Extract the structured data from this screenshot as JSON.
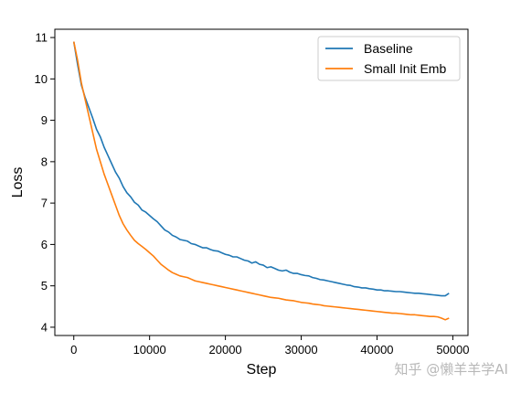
{
  "chart_data": {
    "type": "line",
    "xlabel": "Step",
    "ylabel": "Loss",
    "xlim": [
      -2500,
      52000
    ],
    "ylim": [
      3.8,
      11.2
    ],
    "xticks": [
      0,
      10000,
      20000,
      30000,
      40000,
      50000
    ],
    "yticks": [
      4,
      5,
      6,
      7,
      8,
      9,
      10,
      11
    ],
    "legend_position": "top-right",
    "x": [
      0,
      500,
      1000,
      1500,
      2000,
      2500,
      3000,
      3500,
      4000,
      4500,
      5000,
      5500,
      6000,
      6500,
      7000,
      7500,
      8000,
      8500,
      9000,
      9500,
      10000,
      10500,
      11000,
      11500,
      12000,
      12500,
      13000,
      13500,
      14000,
      14500,
      15000,
      15500,
      16000,
      16500,
      17000,
      17500,
      18000,
      18500,
      19000,
      19500,
      20000,
      20500,
      21000,
      21500,
      22000,
      22500,
      23000,
      23500,
      24000,
      24500,
      25000,
      25500,
      26000,
      26500,
      27000,
      27500,
      28000,
      28500,
      29000,
      29500,
      30000,
      30500,
      31000,
      31500,
      32000,
      32500,
      33000,
      33500,
      34000,
      34500,
      35000,
      35500,
      36000,
      36500,
      37000,
      37500,
      38000,
      38500,
      39000,
      39500,
      40000,
      40500,
      41000,
      41500,
      42000,
      42500,
      43000,
      43500,
      44000,
      44500,
      45000,
      45500,
      46000,
      46500,
      47000,
      47500,
      48000,
      48500,
      49000,
      49500
    ],
    "series": [
      {
        "name": "Baseline",
        "color": "#1f77b4",
        "values": [
          10.9,
          10.35,
          9.85,
          9.55,
          9.3,
          9.05,
          8.78,
          8.6,
          8.35,
          8.15,
          7.95,
          7.75,
          7.6,
          7.4,
          7.25,
          7.15,
          7.02,
          6.95,
          6.83,
          6.78,
          6.7,
          6.62,
          6.55,
          6.45,
          6.35,
          6.3,
          6.22,
          6.18,
          6.12,
          6.1,
          6.08,
          6.02,
          6.0,
          5.96,
          5.92,
          5.92,
          5.88,
          5.85,
          5.84,
          5.8,
          5.76,
          5.74,
          5.7,
          5.7,
          5.66,
          5.62,
          5.6,
          5.55,
          5.58,
          5.52,
          5.5,
          5.44,
          5.46,
          5.42,
          5.38,
          5.36,
          5.38,
          5.33,
          5.3,
          5.3,
          5.27,
          5.25,
          5.24,
          5.2,
          5.18,
          5.15,
          5.14,
          5.12,
          5.1,
          5.08,
          5.06,
          5.04,
          5.02,
          5.01,
          4.98,
          4.97,
          4.95,
          4.95,
          4.93,
          4.92,
          4.9,
          4.9,
          4.88,
          4.88,
          4.87,
          4.86,
          4.86,
          4.85,
          4.84,
          4.83,
          4.82,
          4.82,
          4.81,
          4.8,
          4.79,
          4.78,
          4.77,
          4.76,
          4.76,
          4.82
        ]
      },
      {
        "name": "Small Init Emb",
        "color": "#ff7f0e",
        "values": [
          10.9,
          10.45,
          9.9,
          9.5,
          9.1,
          8.7,
          8.3,
          8.0,
          7.7,
          7.45,
          7.2,
          6.95,
          6.7,
          6.5,
          6.35,
          6.22,
          6.1,
          6.02,
          5.95,
          5.88,
          5.8,
          5.72,
          5.62,
          5.52,
          5.45,
          5.38,
          5.32,
          5.28,
          5.24,
          5.22,
          5.2,
          5.16,
          5.12,
          5.1,
          5.08,
          5.06,
          5.04,
          5.02,
          5.0,
          4.98,
          4.96,
          4.94,
          4.92,
          4.9,
          4.88,
          4.86,
          4.84,
          4.82,
          4.8,
          4.78,
          4.76,
          4.74,
          4.72,
          4.71,
          4.7,
          4.68,
          4.66,
          4.65,
          4.64,
          4.62,
          4.6,
          4.59,
          4.58,
          4.56,
          4.55,
          4.54,
          4.52,
          4.51,
          4.5,
          4.49,
          4.48,
          4.47,
          4.46,
          4.45,
          4.44,
          4.43,
          4.42,
          4.41,
          4.4,
          4.39,
          4.38,
          4.37,
          4.36,
          4.35,
          4.34,
          4.34,
          4.33,
          4.32,
          4.31,
          4.3,
          4.3,
          4.29,
          4.28,
          4.27,
          4.26,
          4.26,
          4.25,
          4.22,
          4.18,
          4.22
        ]
      }
    ]
  },
  "watermark": "知乎 @懒羊羊学AI"
}
